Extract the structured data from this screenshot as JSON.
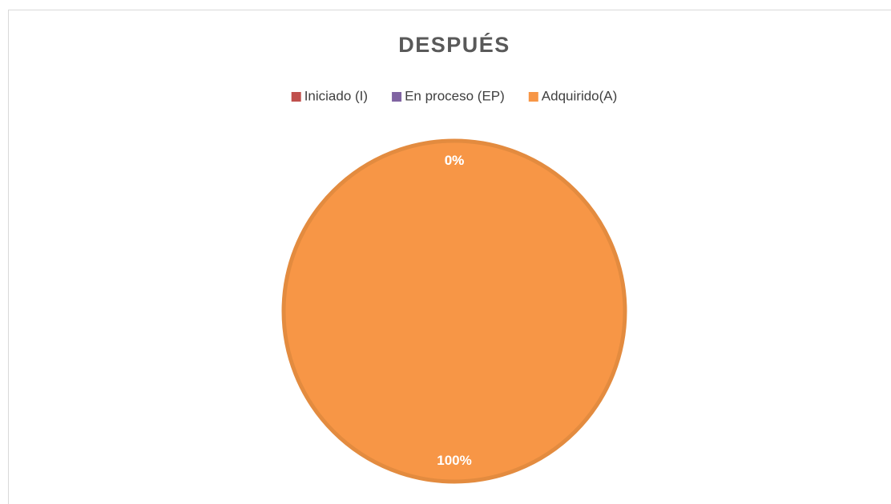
{
  "chart_data": {
    "type": "pie",
    "title": "DESPUÉS",
    "categories": [
      "Iniciado (I)",
      "En proceso (EP)",
      "Adquirido(A)"
    ],
    "values": [
      0,
      0,
      100
    ],
    "value_labels": [
      "0%",
      "0%",
      "100%"
    ],
    "colors": [
      "#c0504d",
      "#8064a2",
      "#f79646"
    ],
    "legend": "top"
  }
}
